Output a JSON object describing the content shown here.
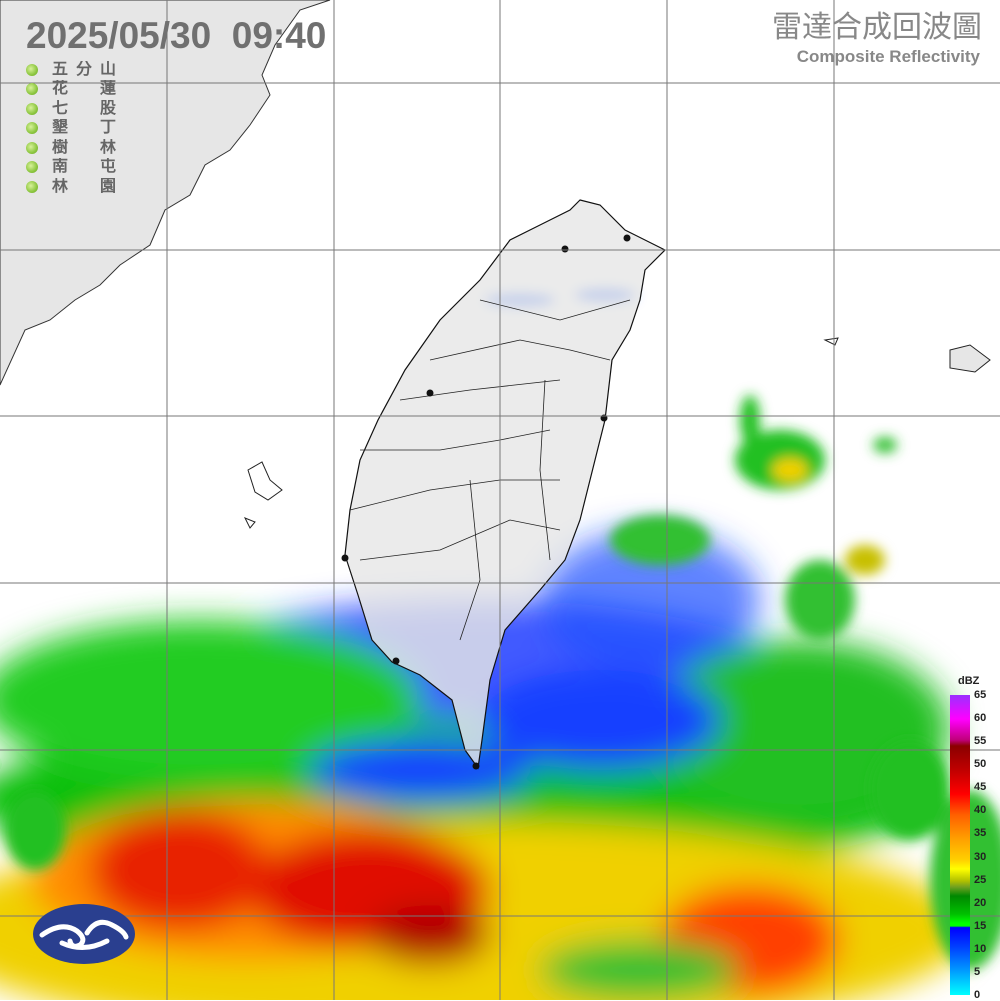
{
  "header": {
    "datetime": "2025/05/30  09:40",
    "product_zh": "雷達合成回波圖",
    "product_en": "Composite Reflectivity"
  },
  "stations": [
    {
      "name": "五分山",
      "status_color": "#8cc63f"
    },
    {
      "name": "花蓮",
      "status_color": "#8cc63f"
    },
    {
      "name": "七股",
      "status_color": "#8cc63f"
    },
    {
      "name": "墾丁",
      "status_color": "#8cc63f"
    },
    {
      "name": "樹林",
      "status_color": "#8cc63f"
    },
    {
      "name": "南屯",
      "status_color": "#8cc63f"
    },
    {
      "name": "林園",
      "status_color": "#8cc63f"
    }
  ],
  "legend": {
    "unit": "dBZ",
    "ticks": [
      "65",
      "60",
      "55",
      "50",
      "45",
      "40",
      "35",
      "30",
      "25",
      "20",
      "15",
      "10",
      "5",
      "0"
    ]
  },
  "logo": {
    "name": "central-weather-administration-logo"
  }
}
